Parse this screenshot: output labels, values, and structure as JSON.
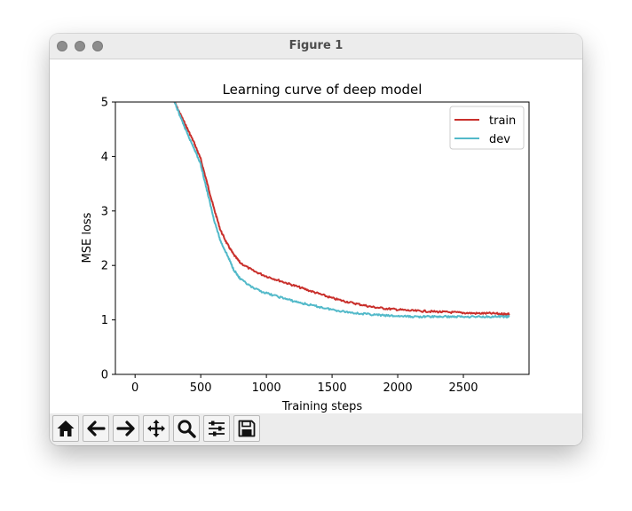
{
  "window": {
    "title": "Figure 1"
  },
  "toolbar": {
    "buttons": [
      {
        "icon": "home-icon"
      },
      {
        "icon": "arrow-left-icon"
      },
      {
        "icon": "arrow-right-icon"
      },
      {
        "icon": "move-icon"
      },
      {
        "icon": "zoom-icon"
      },
      {
        "icon": "sliders-icon"
      },
      {
        "icon": "save-icon"
      }
    ]
  },
  "chart_data": {
    "type": "line",
    "title": "Learning curve of deep model",
    "xlabel": "Training steps",
    "ylabel": "MSE loss",
    "xlim": [
      -150,
      3000
    ],
    "ylim": [
      0,
      5
    ],
    "xticks": [
      0,
      500,
      1000,
      1500,
      2000,
      2500
    ],
    "yticks": [
      0,
      1,
      2,
      3,
      4,
      5
    ],
    "legend_position": "top-right",
    "grid": false,
    "series": [
      {
        "name": "train",
        "color": "#c9302c",
        "x": [
          300,
          350,
          400,
          450,
          500,
          550,
          600,
          650,
          700,
          750,
          800,
          900,
          1000,
          1100,
          1200,
          1300,
          1400,
          1500,
          1600,
          1700,
          1800,
          1900,
          2000,
          2100,
          2200,
          2300,
          2400,
          2500,
          2600,
          2700,
          2800,
          2850
        ],
        "values": [
          5.0,
          4.75,
          4.5,
          4.25,
          3.95,
          3.5,
          3.05,
          2.65,
          2.4,
          2.2,
          2.05,
          1.9,
          1.8,
          1.72,
          1.64,
          1.56,
          1.48,
          1.4,
          1.34,
          1.29,
          1.24,
          1.21,
          1.19,
          1.17,
          1.16,
          1.15,
          1.14,
          1.13,
          1.12,
          1.12,
          1.11,
          1.11
        ]
      },
      {
        "name": "dev",
        "color": "#52b9c9",
        "x": [
          300,
          350,
          400,
          450,
          500,
          550,
          600,
          650,
          700,
          750,
          800,
          900,
          1000,
          1100,
          1200,
          1300,
          1400,
          1500,
          1600,
          1700,
          1800,
          1900,
          2000,
          2100,
          2200,
          2300,
          2400,
          2500,
          2600,
          2700,
          2800,
          2850
        ],
        "values": [
          5.0,
          4.7,
          4.4,
          4.15,
          3.85,
          3.35,
          2.85,
          2.45,
          2.2,
          1.93,
          1.75,
          1.58,
          1.49,
          1.42,
          1.35,
          1.29,
          1.24,
          1.19,
          1.15,
          1.12,
          1.1,
          1.08,
          1.07,
          1.06,
          1.06,
          1.06,
          1.06,
          1.06,
          1.06,
          1.06,
          1.06,
          1.06
        ]
      }
    ]
  }
}
